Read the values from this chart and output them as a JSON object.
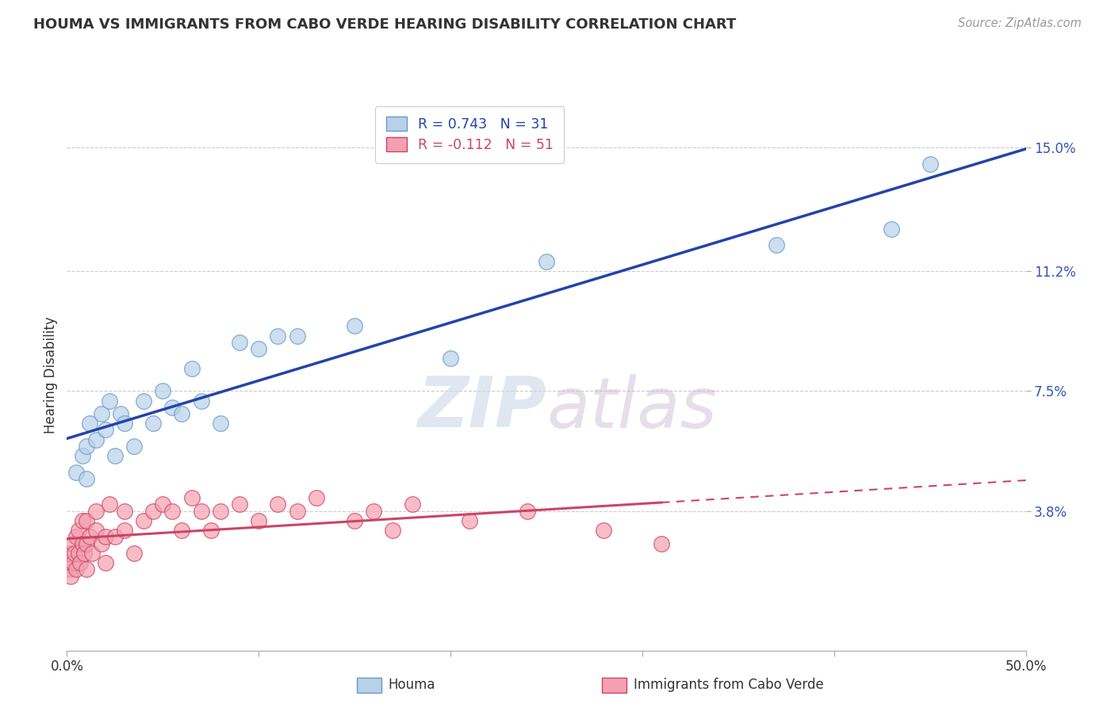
{
  "title": "HOUMA VS IMMIGRANTS FROM CABO VERDE HEARING DISABILITY CORRELATION CHART",
  "source_text": "Source: ZipAtlas.com",
  "ylabel": "Hearing Disability",
  "xlim": [
    0.0,
    0.5
  ],
  "ylim": [
    -0.005,
    0.165
  ],
  "ytick_values": [
    0.038,
    0.075,
    0.112,
    0.15
  ],
  "xtick_values": [
    0.0,
    0.1,
    0.2,
    0.3,
    0.4,
    0.5
  ],
  "houma_color": "#6699cc",
  "houma_face_color": "#b8d0e8",
  "cabo_verde_color": "#cc4466",
  "cabo_verde_face_color": "#f4a0b0",
  "trend_blue_color": "#2244aa",
  "trend_pink_color": "#cc4466",
  "background_color": "#ffffff",
  "grid_color": "#cccccc",
  "watermark_color": "#ccd8e8",
  "houma_x": [
    0.005,
    0.008,
    0.01,
    0.01,
    0.012,
    0.015,
    0.018,
    0.02,
    0.022,
    0.025,
    0.028,
    0.03,
    0.035,
    0.04,
    0.045,
    0.05,
    0.055,
    0.06,
    0.065,
    0.07,
    0.08,
    0.09,
    0.1,
    0.11,
    0.12,
    0.15,
    0.2,
    0.25,
    0.37,
    0.43,
    0.45
  ],
  "houma_y": [
    0.05,
    0.055,
    0.048,
    0.058,
    0.065,
    0.06,
    0.068,
    0.063,
    0.072,
    0.055,
    0.068,
    0.065,
    0.058,
    0.072,
    0.065,
    0.075,
    0.07,
    0.068,
    0.082,
    0.072,
    0.065,
    0.09,
    0.088,
    0.092,
    0.092,
    0.095,
    0.085,
    0.115,
    0.12,
    0.125,
    0.145
  ],
  "cabo_verde_x": [
    0.001,
    0.001,
    0.002,
    0.003,
    0.003,
    0.004,
    0.005,
    0.005,
    0.006,
    0.006,
    0.007,
    0.008,
    0.008,
    0.009,
    0.01,
    0.01,
    0.01,
    0.012,
    0.013,
    0.015,
    0.015,
    0.018,
    0.02,
    0.02,
    0.022,
    0.025,
    0.03,
    0.03,
    0.035,
    0.04,
    0.045,
    0.05,
    0.055,
    0.06,
    0.065,
    0.07,
    0.075,
    0.08,
    0.09,
    0.1,
    0.11,
    0.12,
    0.13,
    0.15,
    0.16,
    0.17,
    0.18,
    0.21,
    0.24,
    0.28,
    0.31
  ],
  "cabo_verde_y": [
    0.02,
    0.025,
    0.018,
    0.022,
    0.028,
    0.025,
    0.02,
    0.03,
    0.025,
    0.032,
    0.022,
    0.028,
    0.035,
    0.025,
    0.02,
    0.028,
    0.035,
    0.03,
    0.025,
    0.032,
    0.038,
    0.028,
    0.022,
    0.03,
    0.04,
    0.03,
    0.032,
    0.038,
    0.025,
    0.035,
    0.038,
    0.04,
    0.038,
    0.032,
    0.042,
    0.038,
    0.032,
    0.038,
    0.04,
    0.035,
    0.04,
    0.038,
    0.042,
    0.035,
    0.038,
    0.032,
    0.04,
    0.035,
    0.038,
    0.032,
    0.028
  ]
}
